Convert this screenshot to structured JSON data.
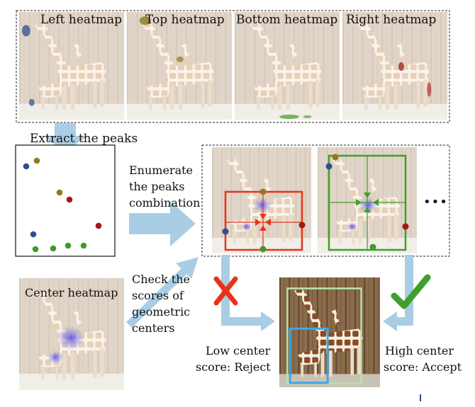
{
  "heatmaps": {
    "left": "Left heatmap",
    "top": "Top heatmap",
    "bottom": "Bottom heatmap",
    "right": "Right heatmap",
    "center": "Center heatmap"
  },
  "steps": {
    "extract": "Extract the peaks",
    "enumerate_l1": "Enumerate",
    "enumerate_l2": "the peaks",
    "enumerate_l3": "combination",
    "check_l1": "Check the",
    "check_l2": "scores of",
    "check_l3": "geometric",
    "check_l4": "centers"
  },
  "ellipsis": "•••",
  "outcomes": {
    "low_l1": "Low center",
    "low_l2": "score: Reject",
    "high_l1": "High center",
    "high_l2": "score: Accept"
  },
  "colors": {
    "left_peak": "#2f4f8f",
    "top_peak": "#8f7a1f",
    "bottom_peak": "#3f9a2a",
    "right_peak": "#a01818",
    "reject_box": "#e8331a",
    "accept_box": "#3f9f2a",
    "arrow": "#a9cde4",
    "center_blob": "#7a70e0"
  },
  "icons": [
    "reject-cross-icon",
    "accept-check-icon"
  ]
}
